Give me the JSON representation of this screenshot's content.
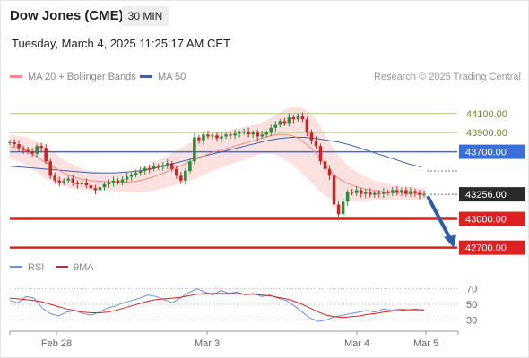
{
  "header": {
    "title": "Dow Jones (CME)",
    "timeframe": "30 MIN",
    "datetime": "Tuesday, March 4, 2025 11:25:17 AM CET"
  },
  "legend": {
    "ma20": "MA 20 + Bollinger Bands",
    "ma50": "MA 50",
    "ma20_color": "#f28b82",
    "ma50_color": "#3f5fa8",
    "copyright": "Research © 2025 Trading Central"
  },
  "rsi_legend": {
    "rsi": "RSI",
    "ma9": "9MA",
    "rsi_color": "#6f8fd8",
    "ma9_color": "#e02020"
  },
  "colors": {
    "up": "#2e8b3a",
    "down": "#c62828",
    "resistance_green": "#a8cc7a",
    "pivot_blue": "#3a6fd8",
    "support_red": "#e02020",
    "current": "#2a2a2a",
    "band_fill": "#fbd7d7",
    "arrow": "#2f5aa8"
  },
  "chart_data": {
    "type": "candlestick",
    "price_levels": [
      {
        "value": 44100.0,
        "label": "44100.00",
        "kind": "resistance"
      },
      {
        "value": 43900.0,
        "label": "43900.00",
        "kind": "resistance"
      },
      {
        "value": 43700.0,
        "label": "43700.00",
        "kind": "pivot"
      },
      {
        "value": 43256.0,
        "label": "43256.00",
        "kind": "current"
      },
      {
        "value": 43000.0,
        "label": "43000.00",
        "kind": "support"
      },
      {
        "value": 42700.0,
        "label": "42700.00",
        "kind": "support"
      }
    ],
    "x_ticks": [
      "Feb 28",
      "Mar 3",
      "Mar 4",
      "Mar 5"
    ],
    "y_range": [
      42650,
      44350
    ],
    "candles_close": [
      43800,
      43780,
      43740,
      43720,
      43700,
      43680,
      43760,
      43740,
      43600,
      43450,
      43400,
      43380,
      43400,
      43420,
      43380,
      43360,
      43380,
      43350,
      43320,
      43300,
      43330,
      43360,
      43380,
      43400,
      43380,
      43410,
      43440,
      43460,
      43480,
      43500,
      43530,
      43520,
      43550,
      43540,
      43560,
      43580,
      43520,
      43450,
      43400,
      43500,
      43600,
      43850,
      43820,
      43880,
      43860,
      43870,
      43840,
      43860,
      43880,
      43870,
      43890,
      43900,
      43910,
      43880,
      43900,
      43860,
      43880,
      43900,
      43950,
      43980,
      44020,
      44000,
      44060,
      44040,
      44070,
      44040,
      43900,
      43820,
      43760,
      43600,
      43520,
      43450,
      43150,
      43050,
      43180,
      43280,
      43270,
      43300,
      43260,
      43280,
      43250,
      43270,
      43260,
      43280,
      43270,
      43300,
      43280,
      43300,
      43260,
      43290,
      43270,
      43250,
      43256
    ],
    "ma20": [
      43750,
      43740,
      43720,
      43690,
      43650,
      43600,
      43560,
      43520,
      43480,
      43450,
      43430,
      43410,
      43400,
      43395,
      43390,
      43385,
      43380,
      43380,
      43385,
      43395,
      43410,
      43430,
      43455,
      43480,
      43510,
      43540,
      43570,
      43600,
      43630,
      43660,
      43690,
      43710,
      43730,
      43750,
      43770,
      43790,
      43810,
      43830,
      43850,
      43870,
      43880,
      43880,
      43870,
      43840,
      43790,
      43730,
      43650,
      43560,
      43480,
      43420,
      43380,
      43350,
      43330,
      43310,
      43300,
      43290,
      43280,
      43275,
      43270,
      43268,
      43266,
      43264,
      43262
    ],
    "ma50": [
      43550,
      43540,
      43530,
      43520,
      43510,
      43500,
      43490,
      43480,
      43480,
      43480,
      43490,
      43500,
      43520,
      43550,
      43580,
      43610,
      43640,
      43670,
      43700,
      43730,
      43760,
      43790,
      43820,
      43840,
      43850,
      43850,
      43840,
      43820,
      43800,
      43770,
      43730,
      43690,
      43650,
      43610,
      43570,
      43540
    ],
    "rsi": {
      "levels": [
        70,
        50,
        30
      ],
      "rsi_values": [
        55,
        52,
        60,
        58,
        45,
        38,
        35,
        40,
        42,
        38,
        36,
        40,
        45,
        48,
        52,
        55,
        58,
        62,
        60,
        56,
        52,
        58,
        65,
        70,
        66,
        62,
        68,
        64,
        66,
        62,
        64,
        60,
        62,
        58,
        55,
        48,
        40,
        32,
        28,
        30,
        34,
        36,
        38,
        40,
        42,
        40,
        44,
        42,
        44,
        43,
        44,
        42
      ],
      "ma9_values": [
        58,
        57,
        56,
        55,
        53,
        50,
        47,
        44,
        42,
        40,
        39,
        39,
        40,
        42,
        45,
        48,
        51,
        54,
        56,
        57,
        58,
        59,
        61,
        63,
        64,
        64,
        64,
        64,
        64,
        63,
        63,
        62,
        61,
        59,
        57,
        54,
        50,
        45,
        40,
        36,
        34,
        33,
        34,
        35,
        37,
        38,
        40,
        41,
        42,
        43,
        43,
        43
      ]
    }
  }
}
